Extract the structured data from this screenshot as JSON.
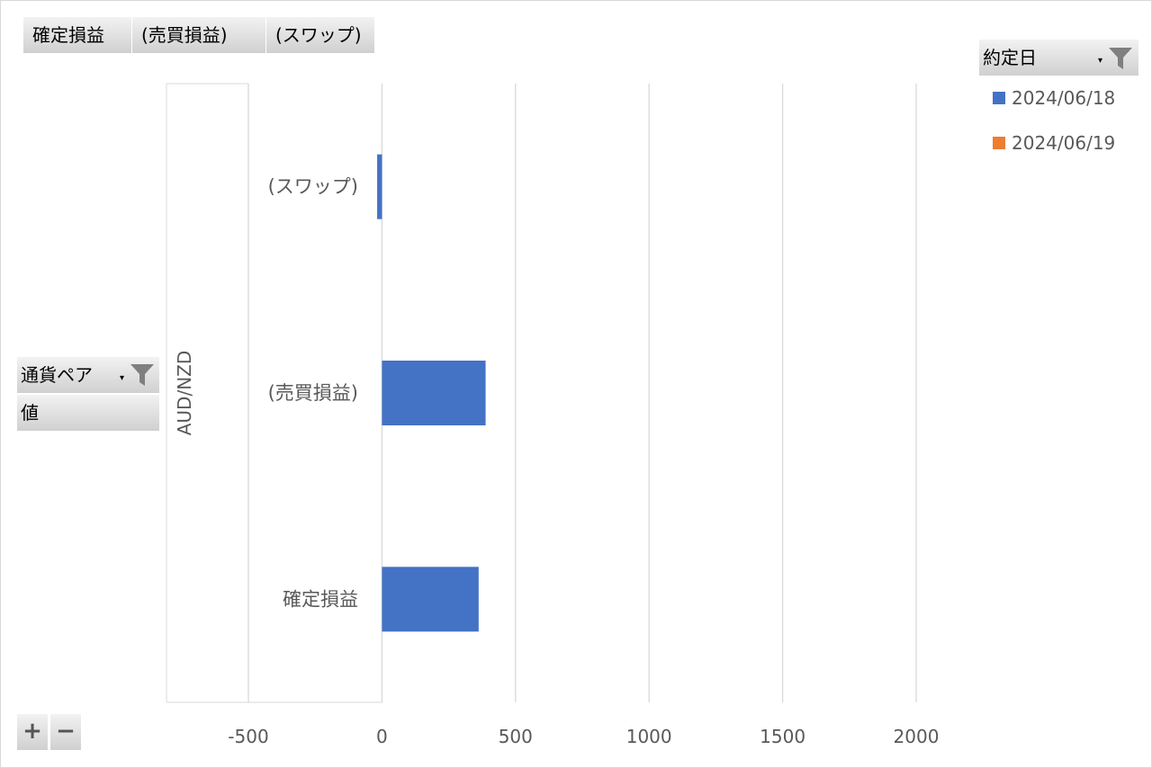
{
  "value_buttons": [
    {
      "label": "確定損益"
    },
    {
      "label": "(売買損益)"
    },
    {
      "label": "(スワップ)"
    }
  ],
  "legend": {
    "field_label": "約定日",
    "items": [
      {
        "label": "2024/06/18",
        "color": "#4472c4"
      },
      {
        "label": "2024/06/19",
        "color": "#ed7d31"
      }
    ]
  },
  "row_fields": {
    "currency_pair_label": "通貨ペア",
    "values_label": "値"
  },
  "zoom_buttons": {
    "expand": "+",
    "collapse": "−"
  },
  "icons": {
    "filter": "funnel-icon",
    "dropdown": "dropdown-arrow-icon"
  },
  "chart_data": {
    "type": "bar",
    "orientation": "horizontal",
    "group_label": "AUD/NZD",
    "categories": [
      "確定損益",
      "(売買損益)",
      "(スワップ)"
    ],
    "series": [
      {
        "name": "2024/06/18",
        "color": "#4472c4",
        "values": [
          362,
          388,
          -18
        ]
      },
      {
        "name": "2024/06/19",
        "color": "#ed7d31",
        "values": [
          null,
          null,
          null
        ]
      }
    ],
    "xlim": [
      -500,
      2000
    ],
    "ticks": [
      "-500",
      "0",
      "500",
      "1000",
      "1500",
      "2000"
    ],
    "tick_values": [
      -500,
      0,
      500,
      1000,
      1500,
      2000
    ],
    "grid": true,
    "legend_position": "top-right"
  }
}
